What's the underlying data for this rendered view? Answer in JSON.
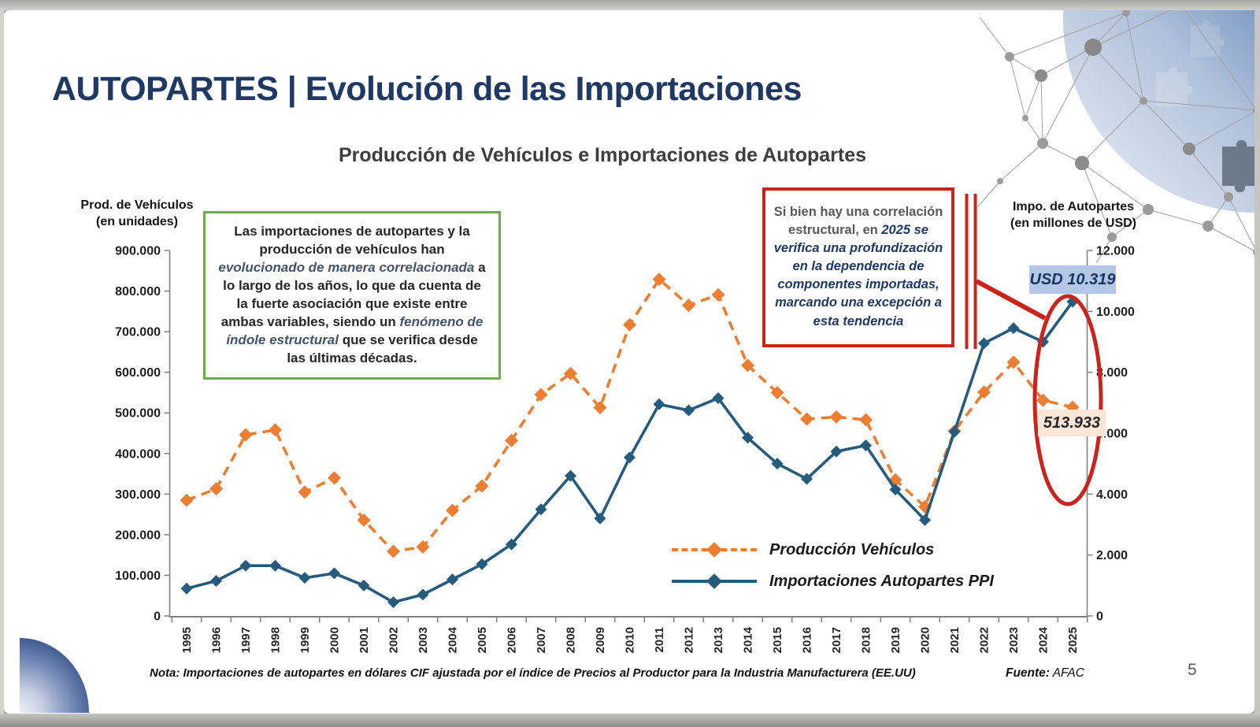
{
  "colors": {
    "navy_title": "#1F3864",
    "red_accent": "#CB241C",
    "green_border": "#6FAC46",
    "orange_series": "#ED7D31",
    "blue_series": "#255C7E",
    "usd_label_bg": "#B4C7E7",
    "prod_label_bg": "#FBE5D6"
  },
  "slide": {
    "title": "AUTOPARTES | Evolución de las Importaciones",
    "page_number": "5",
    "note_text": "Nota: Importaciones de autopartes en dólares CIF ajustada por el índice de Precios al Productor  para la Industria Manufacturera (EE.UU)",
    "fuente_label": "Fuente:",
    "fuente_value": " AFAC"
  },
  "chart": {
    "title": "Producción de Vehículos e Importaciones de Autopartes",
    "left_axis_title_line1": "Prod. de Vehículos",
    "left_axis_title_line2": "(en unidades)",
    "right_axis_title_line1": "Impo. de Autopartes",
    "right_axis_title_line2": "(en millones de USD)",
    "legend": [
      {
        "label": "Producción Vehículos",
        "color": "#ED7D31",
        "style": "dashed"
      },
      {
        "label": "Importaciones Autopartes PPI",
        "color": "#255C7E",
        "style": "solid"
      }
    ]
  },
  "annotations": {
    "green_box": {
      "part1": "Las importaciones de autopartes y la producción de vehículos han ",
      "part2": "evolucionado de manera correlacionada",
      "part3": " a lo largo de los años, lo que da cuenta de la fuerte asociación que existe entre ambas variables, siendo un ",
      "part4": "fenómeno de índole estructural",
      "part5": " que se verifica desde las últimas décadas."
    },
    "red_box": {
      "part1": "Si bien hay una correlación estructural, en ",
      "part2": "2025 se verifica una profundización en la dependencia de componentes importadas, marcando una excepción a esta tendencia"
    }
  },
  "chart_data": {
    "type": "line",
    "title": "Producción de Vehículos e Importaciones de Autopartes",
    "x": [
      "1995",
      "1996",
      "1997",
      "1998",
      "1999",
      "2000",
      "2001",
      "2002",
      "2003",
      "2004",
      "2005",
      "2006",
      "2007",
      "2008",
      "2009",
      "2010",
      "2011",
      "2012",
      "2013",
      "2014",
      "2015",
      "2016",
      "2017",
      "2018",
      "2019",
      "2020",
      "2021",
      "2022",
      "2023",
      "2024",
      "2025"
    ],
    "series": [
      {
        "name": "Producción Vehículos",
        "axis": "left",
        "color": "#ED7D31",
        "style": "dashed",
        "values": [
          285000,
          313000,
          446000,
          458000,
          305000,
          340000,
          236000,
          159000,
          170000,
          260000,
          320000,
          432000,
          545000,
          597000,
          513000,
          717000,
          829000,
          765000,
          791000,
          617000,
          550000,
          485000,
          490000,
          483000,
          335000,
          269000,
          455000,
          551000,
          625000,
          531000,
          513933
        ]
      },
      {
        "name": "Importaciones Autopartes PPI",
        "axis": "right",
        "color": "#255C7E",
        "style": "solid",
        "values": [
          900,
          1150,
          1650,
          1650,
          1250,
          1400,
          1000,
          450,
          700,
          1200,
          1700,
          2350,
          3500,
          4600,
          3200,
          5200,
          6950,
          6750,
          7150,
          5850,
          5000,
          4500,
          5400,
          5600,
          4150,
          3150,
          6050,
          8950,
          9450,
          9000,
          10319
        ]
      }
    ],
    "left_axis": {
      "title": "Prod. de Vehículos (en unidades)",
      "min": 0,
      "max": 900000,
      "tick_step": 100000,
      "tick_labels": [
        "0",
        "100.000",
        "200.000",
        "300.000",
        "400.000",
        "500.000",
        "600.000",
        "700.000",
        "800.000",
        "900.000"
      ]
    },
    "right_axis": {
      "title": "Impo. de Autopartes (en millones de USD)",
      "min": 0,
      "max": 12000,
      "tick_step": 2000,
      "tick_labels": [
        "0",
        "2.000",
        "4.000",
        "6.000",
        "8.000",
        "10.000",
        "12.000"
      ]
    },
    "point_labels": [
      {
        "series": "Importaciones Autopartes PPI",
        "x": "2025",
        "text": "USD 10.319"
      },
      {
        "series": "Producción Vehículos",
        "x": "2025",
        "text": "513.933"
      }
    ],
    "grid": false,
    "legend_position": "inside-bottom-right"
  }
}
